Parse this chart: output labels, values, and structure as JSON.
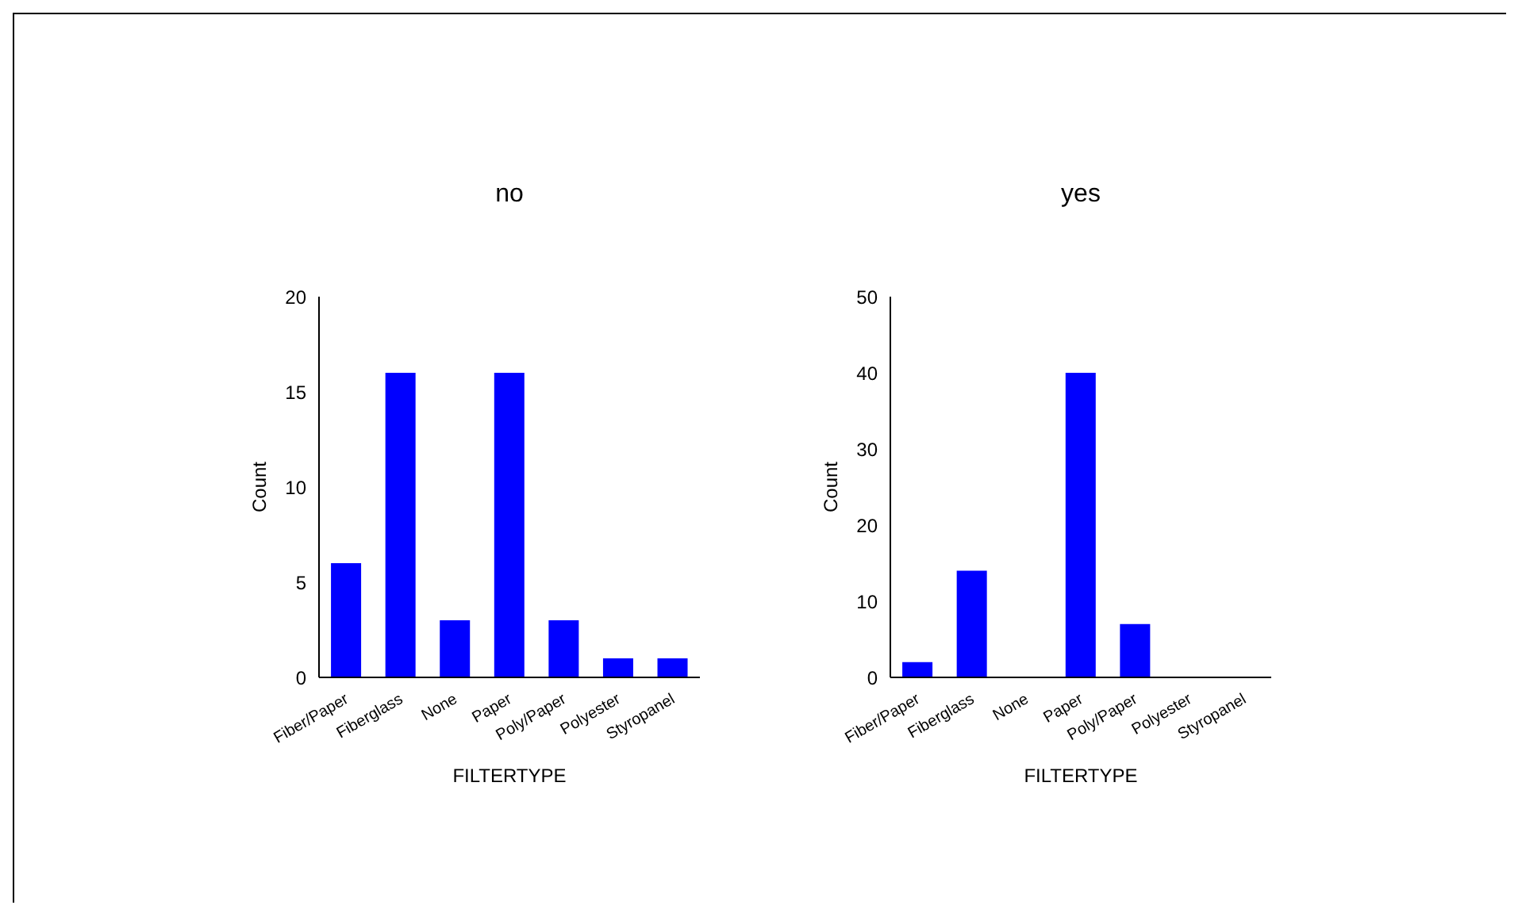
{
  "chart_data": [
    {
      "type": "bar",
      "title": "no",
      "xlabel": "FILTERTYPE",
      "ylabel": "Count",
      "categories": [
        "Fiber/Paper",
        "Fiberglass",
        "None",
        "Paper",
        "Poly/Paper",
        "Polyester",
        "Styropanel"
      ],
      "values": [
        6,
        16,
        3,
        16,
        3,
        1,
        1
      ],
      "color": "#0000ff",
      "ylim": [
        0,
        20
      ],
      "yticks": [
        0,
        5,
        10,
        15,
        20
      ]
    },
    {
      "type": "bar",
      "title": "yes",
      "xlabel": "FILTERTYPE",
      "ylabel": "Count",
      "categories": [
        "Fiber/Paper",
        "Fiberglass",
        "None",
        "Paper",
        "Poly/Paper",
        "Polyester",
        "Styropanel"
      ],
      "values": [
        2,
        14,
        0,
        40,
        7,
        0,
        0
      ],
      "color": "#0000ff",
      "ylim": [
        0,
        50
      ],
      "yticks": [
        0,
        10,
        20,
        30,
        40,
        50
      ]
    }
  ]
}
